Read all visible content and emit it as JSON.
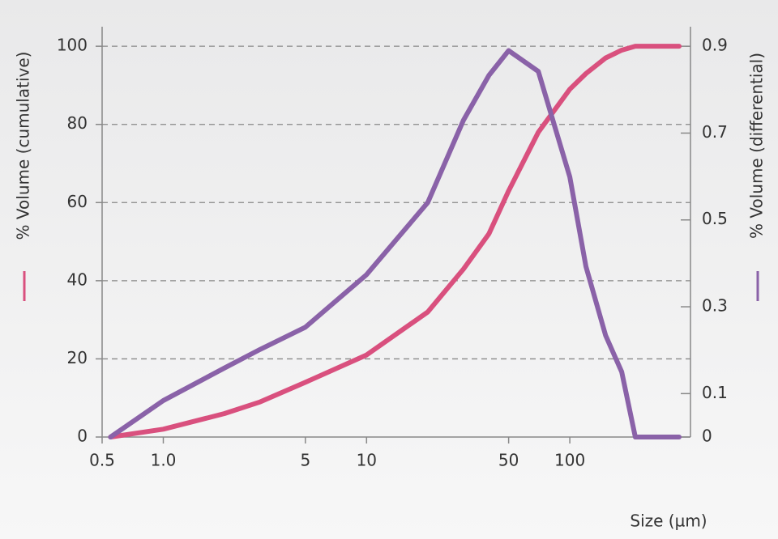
{
  "chart_data": {
    "type": "line",
    "x_label": "Size (µm)",
    "y_label": "% Volume (cumulative)",
    "y2_label": "% Volume (differential)",
    "log_x": true,
    "grid": true,
    "xlim": [
      0.5,
      345
    ],
    "xticks": [
      0.5,
      {
        "value": 1,
        "label": "1.0"
      },
      5,
      10,
      50,
      100
    ],
    "ylim": [
      0,
      105
    ],
    "yticks": [
      0,
      20,
      40,
      60,
      80,
      100
    ],
    "y2lim": [
      0,
      0.945
    ],
    "y2ticks": [
      0,
      0.1,
      0.3,
      0.5,
      0.7,
      0.9
    ],
    "x": [
      0.55,
      1,
      2,
      3,
      5,
      10,
      20,
      30,
      40,
      50,
      70,
      100,
      120,
      150,
      180,
      210,
      345
    ],
    "series": [
      {
        "color": "#d9507e",
        "values": [
          0,
          2,
          6,
          9,
          14,
          21,
          32,
          43,
          52,
          63,
          78,
          89,
          93,
          97,
          99,
          100,
          100
        ]
      },
      {
        "color": "#8a62a8",
        "axis": "y2",
        "values": [
          0,
          0.084,
          0.159,
          0.202,
          0.253,
          0.374,
          0.54,
          0.73,
          0.833,
          0.89,
          0.842,
          0.599,
          0.393,
          0.234,
          0.15,
          0,
          0
        ]
      }
    ]
  }
}
